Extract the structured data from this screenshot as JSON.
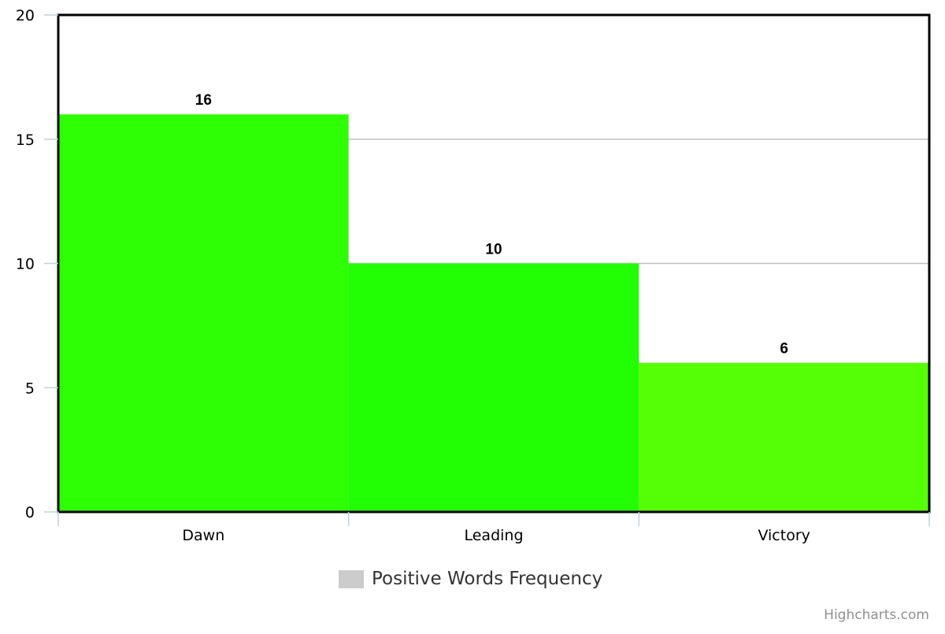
{
  "chart_data": {
    "type": "bar",
    "categories": [
      "Dawn",
      "Leading",
      "Victory"
    ],
    "series": [
      {
        "name": "Positive Words Frequency",
        "values": [
          16,
          10,
          6
        ],
        "colors": [
          "#2eff05",
          "#22ff05",
          "#55ff05"
        ]
      }
    ],
    "yticks": [
      "0",
      "5",
      "10",
      "15",
      "20"
    ],
    "ylim": [
      0,
      20
    ],
    "grid": true,
    "legend_position": "bottom-center",
    "legend_color": "#cccccc"
  },
  "legend": {
    "label": "Positive Words Frequency"
  },
  "credits": {
    "text": "Highcharts.com"
  }
}
